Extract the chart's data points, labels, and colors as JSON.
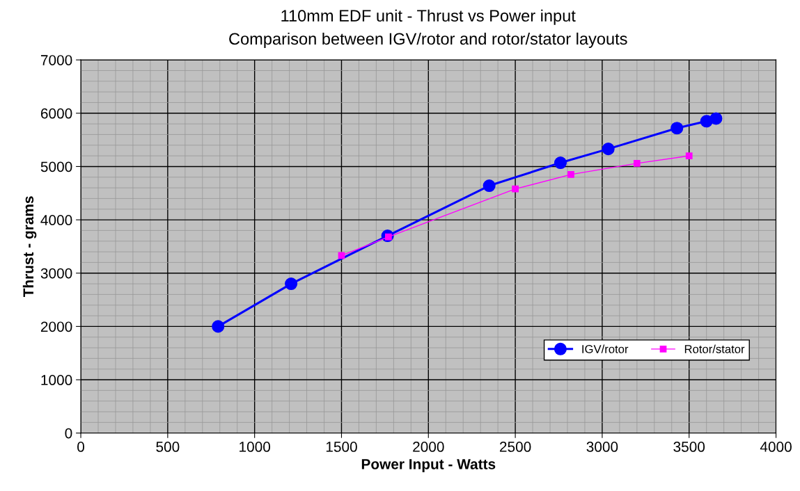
{
  "chart_data": {
    "type": "line",
    "title": "110mm EDF unit - Thrust vs Power input",
    "subtitle": "Comparison between IGV/rotor and rotor/stator layouts",
    "xlabel": "Power Input - Watts",
    "ylabel": "Thrust - grams",
    "xlim": [
      0,
      4000
    ],
    "xticks": [
      0,
      500,
      1000,
      1500,
      2000,
      2500,
      3000,
      3500,
      4000
    ],
    "ylim": [
      0,
      7000
    ],
    "yticks": [
      0,
      1000,
      2000,
      3000,
      4000,
      5000,
      6000,
      7000
    ],
    "grid": true,
    "legend": "bottom right",
    "series": [
      {
        "name": "IGV/rotor",
        "color": "#0000ff",
        "marker": "circle",
        "x": [
          790,
          1210,
          1765,
          2350,
          2760,
          3035,
          3430,
          3600,
          3655
        ],
        "values": [
          2000,
          2800,
          3700,
          4640,
          5070,
          5330,
          5720,
          5850,
          5900
        ]
      },
      {
        "name": "Rotor/stator",
        "color": "#ff00ff",
        "marker": "square",
        "x": [
          1500,
          1770,
          2500,
          2820,
          3200,
          3500
        ],
        "values": [
          3330,
          3680,
          4580,
          4850,
          5060,
          5200
        ]
      }
    ]
  }
}
